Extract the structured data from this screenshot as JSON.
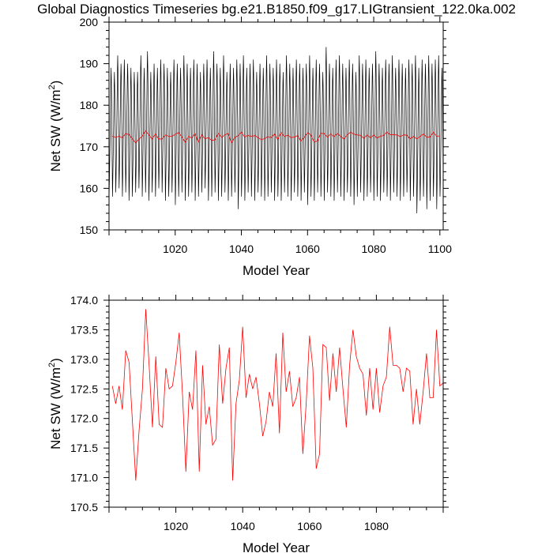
{
  "title": "Global Diagnostics Timeseries bg.e21.B1850.f09_g17.LIGtransient_122.0ka.002",
  "chart_data": [
    {
      "type": "line",
      "name": "monthly-and-annual",
      "xlabel": "Model Year",
      "ylabel_main": "Net SW (W/m",
      "ylabel_sup": "2",
      "ylabel_close": ")",
      "xlim": [
        1000,
        1101
      ],
      "ylim": [
        150,
        200
      ],
      "xticks": [
        1020,
        1040,
        1060,
        1080,
        1100
      ],
      "yticks": [
        150,
        160,
        170,
        180,
        190,
        200
      ],
      "ytick_labels": [
        "150",
        "160",
        "170",
        "180",
        "190",
        "200"
      ],
      "series": [
        {
          "name": "monthly",
          "color": "#000000",
          "seasonal_cycle_months": [
            160,
            163,
            167,
            171,
            176,
            181,
            186,
            189,
            186,
            181,
            175,
            167
          ],
          "annual_peaks": [
            189,
            188,
            192,
            190,
            191,
            190,
            189,
            188,
            188,
            192,
            189,
            193,
            188,
            190,
            189,
            191,
            190,
            189,
            188,
            191,
            190,
            189,
            192,
            190,
            189,
            191,
            190,
            188,
            190,
            191,
            189,
            193,
            190,
            189,
            192,
            188,
            190,
            189,
            191,
            190,
            192,
            189,
            190,
            191,
            188,
            190,
            189,
            192,
            190,
            189,
            191,
            190,
            188,
            192,
            190,
            189,
            191,
            190,
            189,
            190,
            192,
            189,
            191,
            190,
            188,
            194,
            190,
            189,
            191,
            192,
            190,
            189,
            191,
            190,
            188,
            192,
            190,
            191,
            189,
            190,
            193,
            190,
            189,
            191,
            190,
            192,
            189,
            191,
            190,
            189,
            191,
            190,
            192,
            189,
            191,
            190,
            192,
            190,
            191,
            192,
            189
          ],
          "annual_troughs": [
            159,
            158,
            159,
            160,
            158,
            159,
            157,
            158,
            159,
            160,
            158,
            159,
            157,
            159,
            158,
            160,
            159,
            157,
            158,
            159,
            156,
            158,
            159,
            157,
            158,
            159,
            157,
            158,
            159,
            160,
            157,
            158,
            159,
            157,
            158,
            159,
            157,
            158,
            159,
            155,
            158,
            157,
            159,
            158,
            157,
            159,
            158,
            157,
            158,
            159,
            157,
            158,
            157,
            159,
            158,
            157,
            159,
            158,
            157,
            159,
            156,
            158,
            157,
            159,
            158,
            157,
            159,
            158,
            157,
            159,
            158,
            157,
            159,
            158,
            156,
            158,
            159,
            157,
            158,
            159,
            157,
            158,
            157,
            159,
            158,
            157,
            159,
            158,
            157,
            158,
            159,
            157,
            158,
            154,
            157,
            158,
            155,
            157,
            158,
            155,
            158
          ]
        },
        {
          "name": "annual-mean",
          "color": "#ff0000",
          "x": [
            1001,
            1002,
            1003,
            1004,
            1005,
            1006,
            1007,
            1008,
            1009,
            1010,
            1011,
            1012,
            1013,
            1014,
            1015,
            1016,
            1017,
            1018,
            1019,
            1020,
            1021,
            1022,
            1023,
            1024,
            1025,
            1026,
            1027,
            1028,
            1029,
            1030,
            1031,
            1032,
            1033,
            1034,
            1035,
            1036,
            1037,
            1038,
            1039,
            1040,
            1041,
            1042,
            1043,
            1044,
            1045,
            1046,
            1047,
            1048,
            1049,
            1050,
            1051,
            1052,
            1053,
            1054,
            1055,
            1056,
            1057,
            1058,
            1059,
            1060,
            1061,
            1062,
            1063,
            1064,
            1065,
            1066,
            1067,
            1068,
            1069,
            1070,
            1071,
            1072,
            1073,
            1074,
            1075,
            1076,
            1077,
            1078,
            1079,
            1080,
            1081,
            1082,
            1083,
            1084,
            1085,
            1086,
            1087,
            1088,
            1089,
            1090,
            1091,
            1092,
            1093,
            1094,
            1095,
            1096,
            1097,
            1098,
            1099,
            1100
          ],
          "values": [
            172.55,
            172.25,
            172.55,
            172.15,
            173.15,
            172.95,
            171.95,
            170.95,
            171.8,
            172.5,
            173.85,
            172.9,
            171.85,
            173.05,
            171.9,
            171.85,
            172.85,
            172.5,
            172.55,
            172.95,
            173.45,
            172.4,
            171.1,
            172.45,
            172.15,
            173.15,
            171.1,
            172.9,
            171.9,
            172.2,
            171.55,
            171.65,
            173.25,
            172.25,
            172.85,
            173.2,
            170.95,
            172.25,
            172.65,
            173.55,
            172.35,
            172.75,
            172.5,
            172.7,
            172.25,
            171.7,
            171.95,
            172.45,
            172.2,
            173.1,
            171.75,
            173.45,
            172.45,
            172.8,
            172.2,
            172.35,
            172.7,
            171.4,
            172.25,
            173.4,
            172.85,
            171.15,
            171.4,
            173.25,
            173.2,
            172.3,
            173.1,
            172.45,
            173.2,
            172.5,
            171.85,
            172.9,
            173.5,
            173.05,
            172.85,
            172.75,
            172.05,
            172.85,
            172.15,
            172.85,
            172.1,
            172.55,
            172.7,
            173.55,
            172.9,
            172.9,
            172.85,
            172.45,
            172.85,
            172.8,
            171.9,
            172.5,
            171.9,
            172.45,
            173.1,
            172.35,
            172.35,
            173.5,
            172.55,
            172.6
          ]
        }
      ]
    },
    {
      "type": "line",
      "name": "annual-mean-zoom",
      "xlabel": "Model Year",
      "ylabel_main": "Net SW (W/m",
      "ylabel_sup": "2",
      "ylabel_close": ")",
      "xlim": [
        1000,
        1100
      ],
      "ylim": [
        170.5,
        174.0
      ],
      "xticks": [
        1020,
        1040,
        1060,
        1080
      ],
      "yticks": [
        170.5,
        171.0,
        171.5,
        172.0,
        172.5,
        173.0,
        173.5,
        174.0
      ],
      "ytick_labels": [
        "170.5",
        "171.0",
        "171.5",
        "172.0",
        "172.5",
        "173.0",
        "173.5",
        "174.0"
      ],
      "series": [
        {
          "name": "annual-mean",
          "color": "#ff0000",
          "uses": "chart_data.0.series.1"
        }
      ]
    }
  ]
}
